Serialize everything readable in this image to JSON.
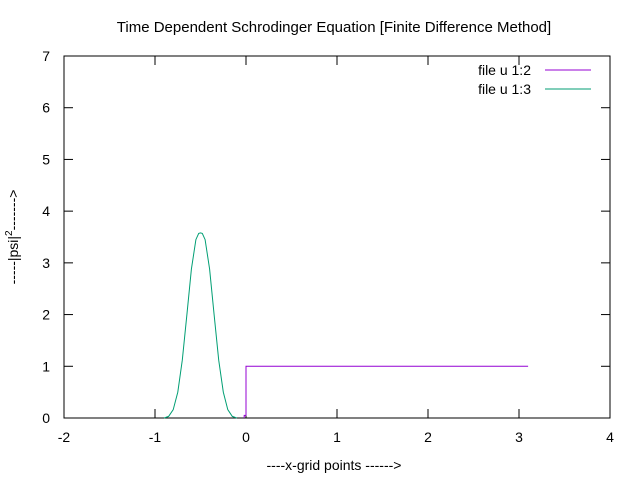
{
  "chart_data": {
    "type": "line",
    "title": "Time Dependent Schrodinger Equation [Finite Difference Method]",
    "xlabel": "----x-grid points ------>",
    "ylabel": {
      "prefix": "-----|psi|",
      "superscript": "2",
      "suffix": "------->"
    },
    "xlim": [
      -2,
      4
    ],
    "ylim": [
      0,
      7
    ],
    "xticks": [
      "-2",
      "-1",
      "0",
      "1",
      "2",
      "3",
      "4"
    ],
    "yticks": [
      "0",
      "1",
      "2",
      "3",
      "4",
      "5",
      "6",
      "7"
    ],
    "grid": false,
    "legend_position": "top-right",
    "series": [
      {
        "name": "file u 1:2",
        "color": "#9400d3",
        "x": [
          -0.02,
          -0.02,
          0.0,
          0.0,
          3.1
        ],
        "y": [
          0,
          0.05,
          0.05,
          1.0,
          1.0
        ]
      },
      {
        "name": "file u 1:3",
        "color": "#009e73",
        "x": [
          -0.9,
          -0.85,
          -0.8,
          -0.75,
          -0.7,
          -0.65,
          -0.6,
          -0.55,
          -0.52,
          -0.5,
          -0.48,
          -0.45,
          -0.4,
          -0.35,
          -0.3,
          -0.25,
          -0.2,
          -0.15,
          -0.1
        ],
        "y": [
          0,
          0.03,
          0.16,
          0.5,
          1.12,
          2.0,
          2.88,
          3.45,
          3.57,
          3.58,
          3.57,
          3.45,
          2.88,
          2.0,
          1.12,
          0.5,
          0.16,
          0.03,
          0
        ]
      }
    ]
  }
}
